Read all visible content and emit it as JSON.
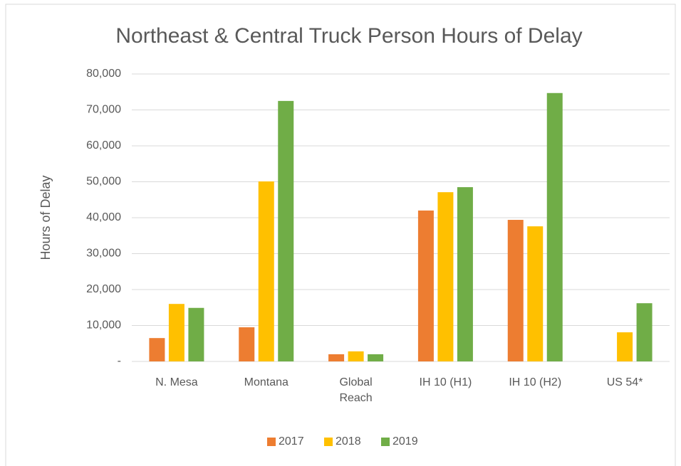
{
  "chart_data": {
    "type": "bar",
    "title": "Northeast & Central Truck Person Hours of Delay",
    "y_label": "Hours of Delay",
    "categories": [
      "N. Mesa",
      "Montana",
      "Global Reach",
      "IH 10 (H1)",
      "IH 10 (H2)",
      "US 54*"
    ],
    "series": [
      {
        "name": "2017",
        "color": "#ed7d31",
        "values": [
          6500,
          9500,
          2000,
          42000,
          39400,
          null
        ]
      },
      {
        "name": "2018",
        "color": "#ffc000",
        "values": [
          16000,
          50100,
          2800,
          47100,
          37600,
          8100
        ]
      },
      {
        "name": "2019",
        "color": "#70ad47",
        "values": [
          14900,
          72500,
          2000,
          48500,
          74700,
          16200
        ]
      }
    ],
    "ylim": [
      0,
      80000
    ],
    "yticks": [
      {
        "value": 0,
        "label": "-"
      },
      {
        "value": 10000,
        "label": "10,000"
      },
      {
        "value": 20000,
        "label": "20,000"
      },
      {
        "value": 30000,
        "label": "30,000"
      },
      {
        "value": 40000,
        "label": "40,000"
      },
      {
        "value": 50000,
        "label": "50,000"
      },
      {
        "value": 60000,
        "label": "60,000"
      },
      {
        "value": 70000,
        "label": "70,000"
      },
      {
        "value": 80000,
        "label": "80,000"
      }
    ],
    "grid": true,
    "legend": "bottom"
  }
}
